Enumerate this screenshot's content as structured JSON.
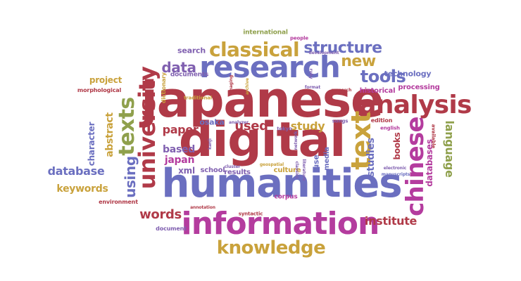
{
  "colors": {
    "red": "#b03a48",
    "blue": "#6b6fc0",
    "olive": "#b8b45a",
    "gold": "#c9a23c",
    "magenta": "#b43c9e",
    "green": "#8fa04c",
    "purple": "#8060b0",
    "teal": "#4a9a8a"
  },
  "words": [
    {
      "text": "japanese",
      "color": "red"
    },
    {
      "text": "digital",
      "color": "red"
    },
    {
      "text": "humanities",
      "color": "blue"
    },
    {
      "text": "information",
      "color": "magenta"
    },
    {
      "text": "research",
      "color": "blue"
    },
    {
      "text": "university",
      "color": "red"
    },
    {
      "text": "text",
      "color": "gold"
    },
    {
      "text": "analysis",
      "color": "red"
    },
    {
      "text": "chinese",
      "color": "magenta"
    },
    {
      "text": "classical",
      "color": "gold"
    },
    {
      "text": "texts",
      "color": "green"
    },
    {
      "text": "knowledge",
      "color": "gold"
    },
    {
      "text": "structure",
      "color": "blue"
    },
    {
      "text": "tools",
      "color": "blue"
    },
    {
      "text": "new",
      "color": "gold"
    },
    {
      "text": "data",
      "color": "purple"
    },
    {
      "text": "using",
      "color": "blue"
    },
    {
      "text": "words",
      "color": "red"
    },
    {
      "text": "database",
      "color": "blue"
    },
    {
      "text": "keywords",
      "color": "gold"
    },
    {
      "text": "institute",
      "color": "red"
    },
    {
      "text": "language",
      "color": "green"
    },
    {
      "text": "abstract",
      "color": "gold"
    },
    {
      "text": "character",
      "color": "blue"
    },
    {
      "text": "project",
      "color": "gold"
    },
    {
      "text": "paper",
      "color": "red"
    },
    {
      "text": "based",
      "color": "purple"
    },
    {
      "text": "japan",
      "color": "magenta"
    },
    {
      "text": "used",
      "color": "red"
    },
    {
      "text": "study",
      "color": "gold"
    },
    {
      "text": "studies",
      "color": "blue"
    },
    {
      "text": "books",
      "color": "red"
    },
    {
      "text": "databases",
      "color": "magenta"
    },
    {
      "text": "technology",
      "color": "blue"
    },
    {
      "text": "processing",
      "color": "magenta"
    },
    {
      "text": "historical",
      "color": "magenta"
    },
    {
      "text": "search",
      "color": "purple"
    },
    {
      "text": "documents",
      "color": "purple"
    },
    {
      "text": "international",
      "color": "green"
    },
    {
      "text": "morphological",
      "color": "red"
    },
    {
      "text": "osaka",
      "color": "blue"
    },
    {
      "text": "xml",
      "color": "purple"
    },
    {
      "text": "school",
      "color": "purple"
    },
    {
      "text": "results",
      "color": "purple"
    },
    {
      "text": "culture",
      "color": "gold"
    },
    {
      "text": "use",
      "color": "blue"
    },
    {
      "text": "media",
      "color": "blue"
    },
    {
      "text": "corpus",
      "color": "magenta"
    },
    {
      "text": "environment",
      "color": "red"
    },
    {
      "text": "document",
      "color": "purple"
    },
    {
      "text": "syntactic",
      "color": "red"
    },
    {
      "text": "edition",
      "color": "red"
    },
    {
      "text": "songs",
      "color": "purple"
    },
    {
      "text": "dictionary",
      "color": "gold"
    },
    {
      "text": "traditional",
      "color": "gold"
    },
    {
      "text": "english",
      "color": "magenta"
    },
    {
      "text": "available",
      "color": "red"
    },
    {
      "text": "tokyo",
      "color": "purple"
    },
    {
      "text": "annotation",
      "color": "red"
    },
    {
      "text": "cluster",
      "color": "purple"
    },
    {
      "text": "analyzer",
      "color": "purple"
    },
    {
      "text": "archive",
      "color": "gold"
    },
    {
      "text": "imaging",
      "color": "red"
    },
    {
      "text": "format",
      "color": "purple"
    },
    {
      "text": "electronic",
      "color": "purple"
    },
    {
      "text": "literature",
      "color": "purple"
    },
    {
      "text": "classics",
      "color": "purple"
    },
    {
      "text": "geospatial",
      "color": "gold"
    },
    {
      "text": "development",
      "color": "purple"
    },
    {
      "text": "network",
      "color": "purple"
    },
    {
      "text": "research",
      "color": "red"
    },
    {
      "text": "manuscripts",
      "color": "blue"
    },
    {
      "text": "people",
      "color": "magenta"
    },
    {
      "text": "kanji",
      "color": "purple"
    },
    {
      "text": "ruby",
      "color": "purple"
    }
  ]
}
